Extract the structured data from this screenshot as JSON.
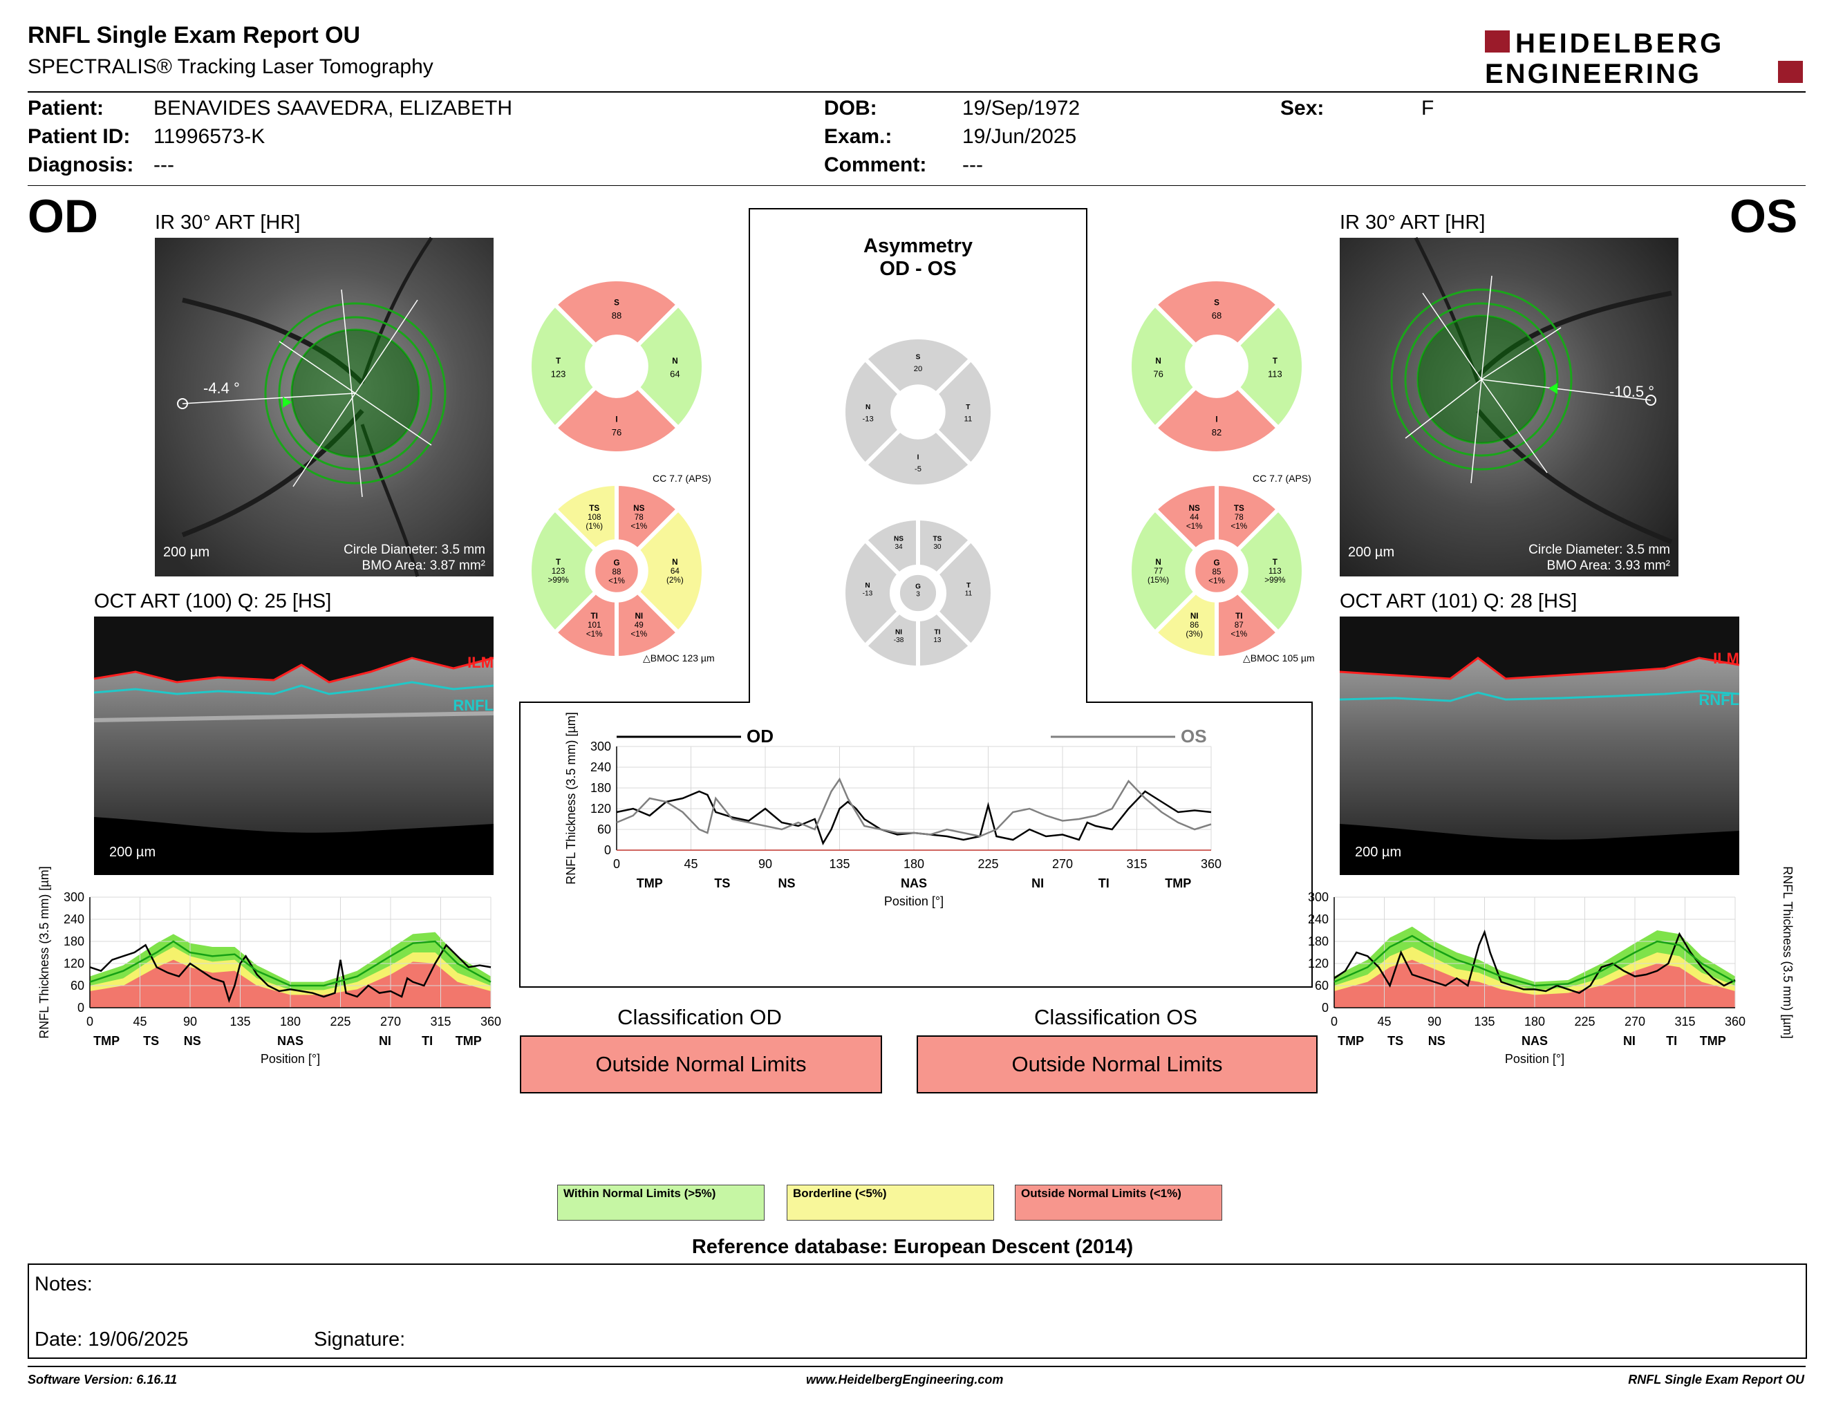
{
  "header": {
    "title": "RNFL Single Exam Report OU",
    "subtitle": "SPECTRALIS® Tracking Laser Tomography",
    "logo_line1": "HEIDELBERG",
    "logo_line2": "ENGINEERING",
    "brand_color": "#9b1b2a"
  },
  "patient": {
    "name_label": "Patient:",
    "name": "BENAVIDES SAAVEDRA, ELIZABETH",
    "id_label": "Patient ID:",
    "id": "11996573-K",
    "diagnosis_label": "Diagnosis:",
    "diagnosis": "---",
    "dob_label": "DOB:",
    "dob": "19/Sep/1972",
    "exam_label": "Exam.:",
    "exam": "19/Jun/2025",
    "comment_label": "Comment:",
    "comment": "---",
    "sex_label": "Sex:",
    "sex": "F"
  },
  "od": {
    "eye": "OD",
    "ir_label": "IR 30° ART [HR]",
    "angle": "-4.4 °",
    "scale": "200 µm",
    "circle_diameter": "Circle Diameter: 3.5 mm",
    "bmo_area": "BMO Area: 3.87 mm²",
    "oct_label": "OCT ART (100) Q: 25 [HS]",
    "ilm": "ILM",
    "rnfl": "RNFL",
    "oct_scale": "200 µm",
    "cc": "CC 7.7 (APS)",
    "bmoc": "BMOC 123 µm"
  },
  "os": {
    "eye": "OS",
    "ir_label": "IR 30° ART [HR]",
    "angle": "-10.5 °",
    "scale": "200 µm",
    "circle_diameter": "Circle Diameter: 3.5 mm",
    "bmo_area": "BMO Area: 3.93 mm²",
    "oct_label": "OCT ART (101) Q: 28 [HS]",
    "ilm": "ILM",
    "rnfl": "RNFL",
    "oct_scale": "200 µm",
    "cc": "CC 7.7 (APS)",
    "bmoc": "BMOC 105 µm"
  },
  "quadrant_charts": [
    {
      "id": "od-q",
      "center": []
    },
    {
      "id": "os-q"
    }
  ],
  "sector_values": {
    "od_quadrants": [
      {
        "k": "S",
        "v": "88",
        "c": "#f7968d"
      },
      {
        "k": "N",
        "v": "64",
        "c": "#c6f6a4"
      },
      {
        "k": "I",
        "v": "76",
        "c": "#f7968d"
      },
      {
        "k": "T",
        "v": "123",
        "c": "#c6f6a4"
      }
    ],
    "os_quadrants": [
      {
        "k": "S",
        "v": "68",
        "c": "#f7968d"
      },
      {
        "k": "T",
        "v": "113",
        "c": "#c6f6a4"
      },
      {
        "k": "I",
        "v": "82",
        "c": "#f7968d"
      },
      {
        "k": "N",
        "v": "76",
        "c": "#c6f6a4"
      }
    ],
    "asym_quadrants": [
      {
        "k": "S",
        "v": "20",
        "c": "#d3d3d3"
      },
      {
        "k": "T",
        "v": "11",
        "c": "#d3d3d3"
      },
      {
        "k": "I",
        "v": "-5",
        "c": "#d3d3d3"
      },
      {
        "k": "N",
        "v": "-13",
        "c": "#d3d3d3"
      }
    ],
    "od_sectors": {
      "G": {
        "v": "88",
        "p": "<1%",
        "c": "#f7968d"
      },
      "sectors": [
        {
          "k": "NS",
          "v": "78",
          "p": "<1%",
          "c": "#f7968d"
        },
        {
          "k": "N",
          "v": "64",
          "p": "(2%)",
          "c": "#f8f79a"
        },
        {
          "k": "NI",
          "v": "49",
          "p": "<1%",
          "c": "#f7968d"
        },
        {
          "k": "TI",
          "v": "101",
          "p": "<1%",
          "c": "#f7968d"
        },
        {
          "k": "T",
          "v": "123",
          "p": ">99%",
          "c": "#c6f6a4"
        },
        {
          "k": "TS",
          "v": "108",
          "p": "(1%)",
          "c": "#f8f79a"
        }
      ]
    },
    "os_sectors": {
      "G": {
        "v": "85",
        "p": "<1%",
        "c": "#f7968d"
      },
      "sectors": [
        {
          "k": "TS",
          "v": "78",
          "p": "<1%",
          "c": "#f7968d"
        },
        {
          "k": "T",
          "v": "113",
          "p": ">99%",
          "c": "#c6f6a4"
        },
        {
          "k": "TI",
          "v": "87",
          "p": "<1%",
          "c": "#f7968d"
        },
        {
          "k": "NI",
          "v": "86",
          "p": "(3%)",
          "c": "#f8f79a"
        },
        {
          "k": "N",
          "v": "77",
          "p": "(15%)",
          "c": "#c6f6a4"
        },
        {
          "k": "NS",
          "v": "44",
          "p": "<1%",
          "c": "#f7968d"
        }
      ]
    },
    "asym_sectors": {
      "G": {
        "v": "3",
        "p": "",
        "c": "#d3d3d3"
      },
      "sectors": [
        {
          "k": "TS",
          "v": "30",
          "p": "",
          "c": "#d3d3d3"
        },
        {
          "k": "T",
          "v": "11",
          "p": "",
          "c": "#d3d3d3"
        },
        {
          "k": "TI",
          "v": "13",
          "p": "",
          "c": "#d3d3d3"
        },
        {
          "k": "NI",
          "v": "-38",
          "p": "",
          "c": "#d3d3d3"
        },
        {
          "k": "N",
          "v": "-13",
          "p": "",
          "c": "#d3d3d3"
        },
        {
          "k": "NS",
          "v": "34",
          "p": "",
          "c": "#d3d3d3"
        }
      ]
    }
  },
  "asymmetry": {
    "title_line1": "Asymmetry",
    "title_line2": "OD - OS",
    "od_legend": "OD",
    "os_legend": "OS"
  },
  "classification": {
    "od_title": "Classification OD",
    "od_value": "Outside Normal Limits",
    "os_title": "Classification OS",
    "os_value": "Outside Normal Limits"
  },
  "legend": {
    "within": "Within Normal Limits (>5%)",
    "borderline": "Borderline (<5%)",
    "outside": "Outside Normal Limits (<1%)",
    "colors": {
      "within": "#c6f6a4",
      "borderline": "#f8f79a",
      "outside": "#f7968d"
    }
  },
  "reference_db": "Reference database: European Descent (2014)",
  "notes": {
    "notes_label": "Notes:",
    "date_label": "Date: 19/06/2025",
    "signature_label": "Signature:"
  },
  "footer": {
    "version": "Software Version: 6.16.11",
    "url": "www.HeidelbergEngineering.com",
    "report": "RNFL Single Exam Report OU"
  },
  "chart_data": [
    {
      "type": "line",
      "title": "",
      "chart": "asymmetry",
      "xlabel": "Position [°]",
      "ylabel": "RNFL Thickness (3.5 mm) [µm]",
      "xlim": [
        0,
        360
      ],
      "ylim": [
        0,
        300
      ],
      "xticks": [
        "0",
        "45",
        "90",
        "135",
        "180",
        "225",
        "270",
        "315",
        "360"
      ],
      "yticks": [
        "0",
        "60",
        "120",
        "180",
        "240",
        "300"
      ],
      "region_labels": [
        {
          "x": 20,
          "t": "TMP"
        },
        {
          "x": 64,
          "t": "TS"
        },
        {
          "x": 103,
          "t": "NS"
        },
        {
          "x": 180,
          "t": "NAS"
        },
        {
          "x": 255,
          "t": "NI"
        },
        {
          "x": 295,
          "t": "TI"
        },
        {
          "x": 340,
          "t": "TMP"
        }
      ],
      "series": [
        {
          "name": "OD",
          "color": "#000000",
          "x": [
            0,
            10,
            20,
            30,
            40,
            50,
            55,
            60,
            70,
            80,
            90,
            95,
            100,
            110,
            120,
            125,
            130,
            135,
            140,
            145,
            150,
            160,
            170,
            180,
            190,
            200,
            210,
            220,
            225,
            230,
            240,
            250,
            260,
            270,
            280,
            285,
            290,
            300,
            310,
            320,
            330,
            340,
            350,
            360
          ],
          "y": [
            110,
            120,
            100,
            140,
            150,
            170,
            160,
            110,
            95,
            85,
            120,
            100,
            80,
            70,
            90,
            20,
            60,
            120,
            140,
            120,
            90,
            60,
            45,
            50,
            45,
            40,
            30,
            40,
            130,
            40,
            30,
            60,
            40,
            45,
            30,
            80,
            70,
            60,
            120,
            170,
            140,
            110,
            115,
            110
          ]
        },
        {
          "name": "OS",
          "color": "#808080",
          "x": [
            0,
            10,
            20,
            30,
            40,
            50,
            55,
            60,
            70,
            80,
            90,
            100,
            110,
            120,
            130,
            135,
            140,
            150,
            160,
            170,
            180,
            190,
            200,
            210,
            220,
            230,
            240,
            250,
            260,
            270,
            280,
            290,
            300,
            310,
            320,
            330,
            340,
            350,
            360
          ],
          "y": [
            80,
            100,
            150,
            140,
            110,
            60,
            50,
            150,
            90,
            80,
            70,
            60,
            80,
            60,
            170,
            205,
            150,
            70,
            60,
            50,
            50,
            45,
            60,
            50,
            40,
            60,
            110,
            120,
            100,
            85,
            90,
            100,
            120,
            200,
            150,
            110,
            80,
            60,
            75
          ]
        }
      ]
    },
    {
      "type": "area",
      "chart": "od-profile",
      "xlabel": "Position [°]",
      "ylabel": "RNFL Thickness (3.5 mm) [µm]",
      "xlim": [
        0,
        360
      ],
      "ylim": [
        0,
        300
      ],
      "xticks": [
        "0",
        "45",
        "90",
        "135",
        "180",
        "225",
        "270",
        "315",
        "360"
      ],
      "yticks": [
        "0",
        "60",
        "120",
        "180",
        "240",
        "300"
      ],
      "region_labels": [
        {
          "x": 15,
          "t": "TMP"
        },
        {
          "x": 55,
          "t": "TS"
        },
        {
          "x": 92,
          "t": "NS"
        },
        {
          "x": 180,
          "t": "NAS"
        },
        {
          "x": 265,
          "t": "NI"
        },
        {
          "x": 303,
          "t": "TI"
        },
        {
          "x": 340,
          "t": "TMP"
        }
      ],
      "bands": {
        "x": [
          0,
          30,
          60,
          75,
          90,
          110,
          130,
          150,
          180,
          210,
          240,
          270,
          290,
          310,
          330,
          360
        ],
        "outside_upper": [
          45,
          60,
          110,
          130,
          110,
          95,
          100,
          60,
          35,
          35,
          50,
          90,
          125,
          120,
          70,
          45
        ],
        "borderline_upper": [
          60,
          80,
          140,
          165,
          140,
          125,
          130,
          80,
          48,
          48,
          70,
          115,
          150,
          150,
          95,
          60
        ],
        "within_upper": [
          85,
          115,
          175,
          200,
          175,
          165,
          165,
          115,
          70,
          70,
          100,
          160,
          200,
          205,
          140,
          85
        ]
      },
      "series": [
        {
          "name": "patient",
          "color": "#000000",
          "x": [
            0,
            10,
            20,
            30,
            40,
            50,
            60,
            70,
            80,
            90,
            100,
            110,
            120,
            125,
            130,
            135,
            140,
            150,
            160,
            170,
            180,
            190,
            200,
            210,
            220,
            225,
            230,
            240,
            250,
            260,
            270,
            280,
            285,
            290,
            300,
            310,
            320,
            330,
            340,
            350,
            360
          ],
          "y": [
            110,
            100,
            130,
            140,
            150,
            170,
            110,
            95,
            85,
            120,
            100,
            80,
            70,
            20,
            60,
            120,
            140,
            90,
            60,
            45,
            50,
            45,
            40,
            30,
            40,
            130,
            40,
            30,
            60,
            40,
            45,
            30,
            80,
            70,
            60,
            120,
            170,
            140,
            110,
            115,
            110
          ]
        },
        {
          "name": "mean",
          "color": "#15a015",
          "x": [
            0,
            30,
            60,
            75,
            90,
            110,
            130,
            150,
            180,
            210,
            240,
            270,
            290,
            310,
            330,
            360
          ],
          "y": [
            70,
            100,
            150,
            180,
            150,
            140,
            145,
            100,
            60,
            60,
            85,
            140,
            175,
            180,
            120,
            70
          ]
        }
      ]
    },
    {
      "type": "area",
      "chart": "os-profile",
      "xlabel": "Position [°]",
      "ylabel": "RNFL Thickness (3.5 mm) [µm]",
      "xlim": [
        0,
        360
      ],
      "ylim": [
        0,
        300
      ],
      "xticks": [
        "0",
        "45",
        "90",
        "135",
        "180",
        "225",
        "270",
        "315",
        "360"
      ],
      "yticks": [
        "0",
        "60",
        "120",
        "180",
        "240",
        "300"
      ],
      "region_labels": [
        {
          "x": 15,
          "t": "TMP"
        },
        {
          "x": 55,
          "t": "TS"
        },
        {
          "x": 92,
          "t": "NS"
        },
        {
          "x": 180,
          "t": "NAS"
        },
        {
          "x": 265,
          "t": "NI"
        },
        {
          "x": 303,
          "t": "TI"
        },
        {
          "x": 340,
          "t": "TMP"
        }
      ],
      "bands": {
        "x": [
          0,
          30,
          50,
          70,
          90,
          110,
          130,
          150,
          180,
          210,
          240,
          270,
          290,
          310,
          330,
          360
        ],
        "outside_upper": [
          45,
          70,
          110,
          130,
          105,
          80,
          70,
          50,
          35,
          40,
          60,
          100,
          120,
          110,
          70,
          45
        ],
        "borderline_upper": [
          60,
          90,
          140,
          165,
          135,
          105,
          95,
          70,
          48,
          55,
          80,
          125,
          150,
          140,
          95,
          60
        ],
        "within_upper": [
          85,
          130,
          190,
          220,
          180,
          150,
          130,
          100,
          70,
          75,
          120,
          175,
          210,
          200,
          140,
          85
        ]
      },
      "series": [
        {
          "name": "patient",
          "color": "#000000",
          "x": [
            0,
            10,
            20,
            30,
            40,
            50,
            60,
            70,
            80,
            90,
            100,
            110,
            120,
            130,
            135,
            140,
            150,
            160,
            170,
            180,
            190,
            200,
            210,
            220,
            230,
            240,
            250,
            260,
            270,
            280,
            290,
            300,
            310,
            320,
            330,
            340,
            350,
            360
          ],
          "y": [
            80,
            100,
            150,
            140,
            110,
            60,
            150,
            90,
            80,
            70,
            60,
            80,
            60,
            170,
            205,
            150,
            70,
            60,
            50,
            50,
            45,
            60,
            50,
            40,
            60,
            110,
            120,
            100,
            85,
            90,
            100,
            120,
            200,
            150,
            110,
            80,
            60,
            75
          ]
        },
        {
          "name": "mean",
          "color": "#15a015",
          "x": [
            0,
            30,
            50,
            70,
            90,
            110,
            130,
            150,
            180,
            210,
            240,
            270,
            290,
            310,
            330,
            360
          ],
          "y": [
            70,
            110,
            165,
            195,
            160,
            130,
            110,
            85,
            60,
            65,
            100,
            150,
            180,
            170,
            120,
            70
          ]
        }
      ]
    }
  ]
}
